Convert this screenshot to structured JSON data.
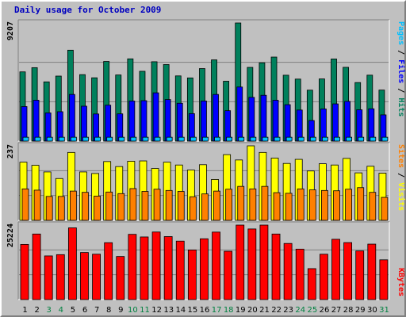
{
  "title": "Daily usage for October 2009",
  "colors": {
    "hits": "#00805c",
    "files": "#0000ff",
    "pages": "#00c0ff",
    "visits": "#ffff00",
    "sites": "#ff8000",
    "kbytes": "#ff0000",
    "weekday_label": "#000000",
    "weekend_label": "#008040"
  },
  "chart_data": [
    {
      "type": "bar",
      "title": "",
      "ymax_label": "9207",
      "ylim": [
        0,
        9207
      ],
      "side_labels": [
        "Pages",
        "Files",
        "Hits"
      ],
      "categories": [
        "1",
        "2",
        "3",
        "4",
        "5",
        "6",
        "7",
        "8",
        "9",
        "10",
        "11",
        "12",
        "13",
        "14",
        "15",
        "16",
        "17",
        "18",
        "19",
        "20",
        "21",
        "22",
        "23",
        "24",
        "25",
        "26",
        "27",
        "28",
        "29",
        "30",
        "31"
      ],
      "series": [
        {
          "name": "Hits",
          "values": [
            5395,
            5723,
            4616,
            5067,
            7086,
            5180,
            4934,
            6207,
            5155,
            6412,
            5441,
            6185,
            5966,
            5081,
            4925,
            5653,
            6332,
            4666,
            9207,
            5746,
            6105,
            6549,
            5135,
            4833,
            3970,
            4846,
            6403,
            5751,
            4563,
            5139,
            3978
          ]
        },
        {
          "name": "Files",
          "values": [
            2691,
            3187,
            2196,
            2289,
            3636,
            2721,
            2113,
            2800,
            2122,
            3122,
            3151,
            3762,
            3237,
            2949,
            2140,
            3125,
            3636,
            2369,
            4215,
            3408,
            3571,
            3184,
            2838,
            2421,
            1601,
            2505,
            2901,
            3095,
            2441,
            2517,
            2043
          ]
        },
        {
          "name": "Pages",
          "values": [
            300,
            300,
            300,
            300,
            300,
            300,
            300,
            300,
            300,
            300,
            300,
            300,
            300,
            300,
            300,
            300,
            300,
            300,
            300,
            300,
            300,
            300,
            300,
            300,
            300,
            300,
            300,
            300,
            300,
            300,
            300
          ]
        }
      ]
    },
    {
      "type": "bar",
      "title": "",
      "ymax_label": "237",
      "ylim": [
        0,
        237
      ],
      "side_labels": [
        "Sites",
        "Visits"
      ],
      "categories": [
        "1",
        "2",
        "3",
        "4",
        "5",
        "6",
        "7",
        "8",
        "9",
        "10",
        "11",
        "12",
        "13",
        "14",
        "15",
        "16",
        "17",
        "18",
        "19",
        "20",
        "21",
        "22",
        "23",
        "24",
        "25",
        "26",
        "27",
        "28",
        "29",
        "30",
        "31"
      ],
      "series": [
        {
          "name": "Visits",
          "values": [
            185,
            175,
            154,
            133,
            216,
            154,
            149,
            187,
            171,
            188,
            189,
            165,
            185,
            176,
            160,
            177,
            130,
            209,
            192,
            237,
            216,
            198,
            181,
            194,
            157,
            180,
            176,
            197,
            151,
            172,
            150
          ]
        },
        {
          "name": "Sites",
          "values": [
            100,
            96,
            76,
            76,
            93,
            89,
            77,
            90,
            85,
            101,
            92,
            99,
            95,
            92,
            75,
            84,
            93,
            99,
            108,
            100,
            108,
            88,
            86,
            100,
            97,
            95,
            94,
            99,
            104,
            89,
            73
          ]
        }
      ]
    },
    {
      "type": "bar",
      "title": "",
      "ymax_label": "25224",
      "ylim": [
        0,
        25224
      ],
      "side_labels": [
        "KBytes"
      ],
      "categories": [
        "1",
        "2",
        "3",
        "4",
        "5",
        "6",
        "7",
        "8",
        "9",
        "10",
        "11",
        "12",
        "13",
        "14",
        "15",
        "16",
        "17",
        "18",
        "19",
        "20",
        "21",
        "22",
        "23",
        "24",
        "25",
        "26",
        "27",
        "28",
        "29",
        "30",
        "31"
      ],
      "series": [
        {
          "name": "KBytes",
          "values": [
            18680,
            22195,
            14777,
            15210,
            24286,
            15935,
            15368,
            19264,
            14586,
            22087,
            21206,
            22876,
            21330,
            19798,
            16800,
            20584,
            22850,
            16364,
            25224,
            23910,
            25224,
            22196,
            19000,
            17080,
            10480,
            15362,
            20412,
            19296,
            16460,
            18776,
            13460
          ]
        }
      ]
    }
  ],
  "weekend_days": [
    3,
    4,
    10,
    11,
    17,
    18,
    24,
    25,
    31
  ]
}
